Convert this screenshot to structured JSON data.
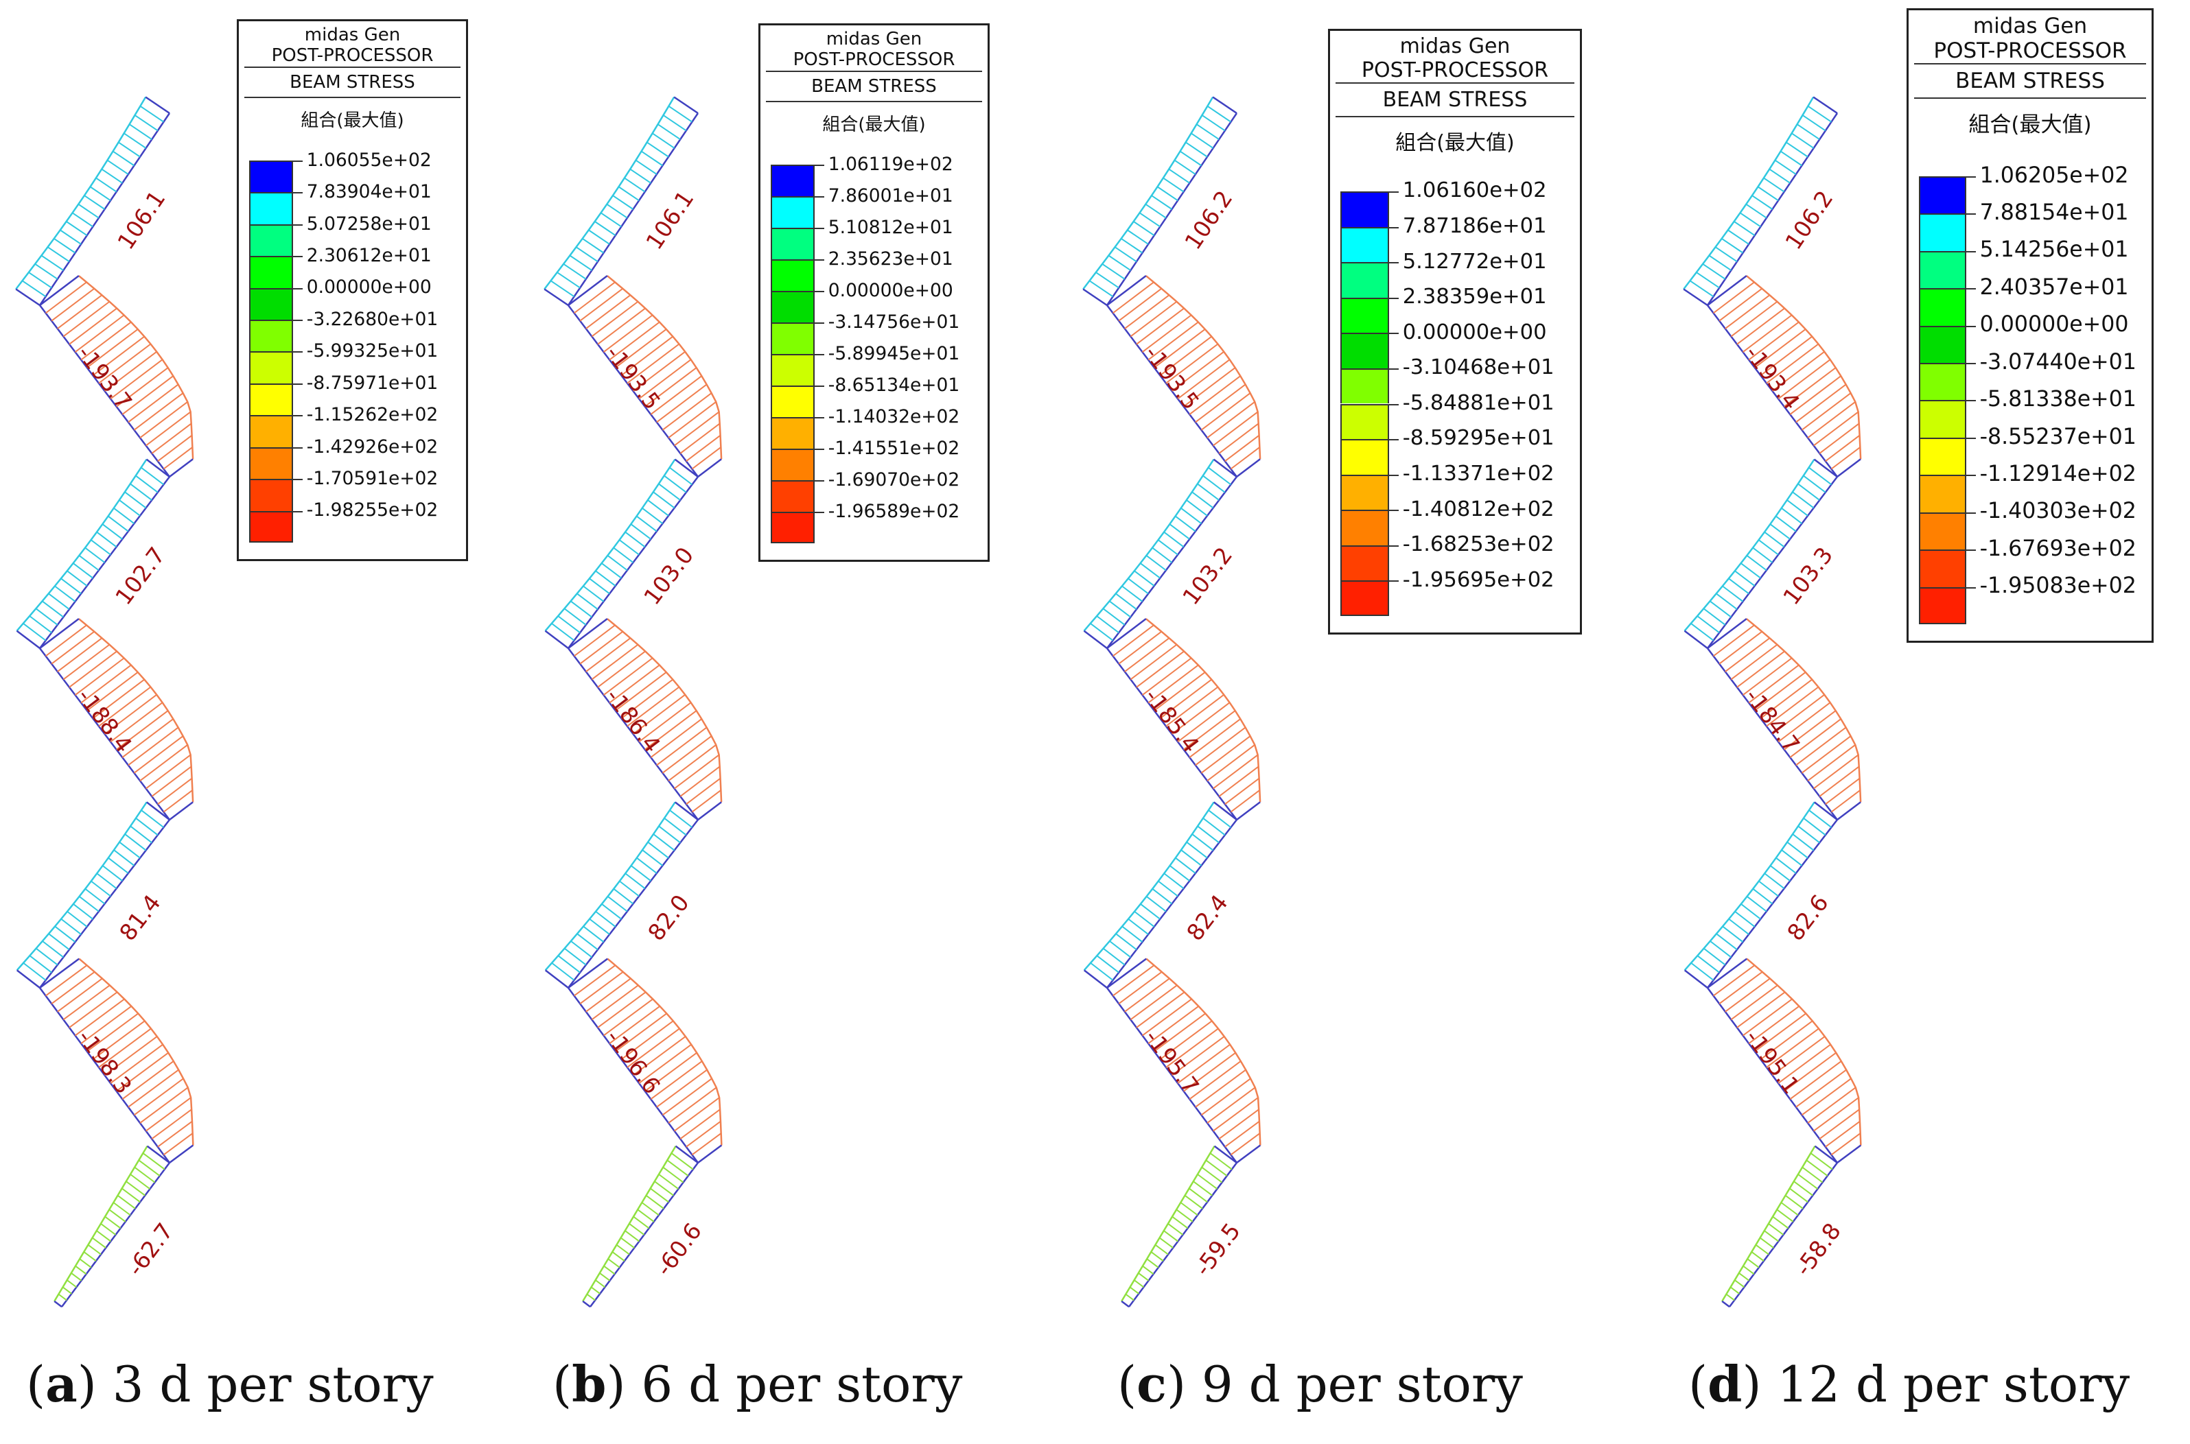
{
  "panels": [
    {
      "id": "a",
      "caption_letter": "a",
      "caption_text": "3 d per story",
      "values": [
        "106.1",
        "-193.7",
        "102.7",
        "-188.4",
        "81.4",
        "-198.3",
        "-62.7"
      ],
      "legend": {
        "title1": "midas Gen",
        "title2": "POST-PROCESSOR",
        "title3": "BEAM STRESS",
        "subtitle": "組合(最大值)",
        "levels": [
          "1.06055e+02",
          "7.83904e+01",
          "5.07258e+01",
          "2.30612e+01",
          "0.00000e+00",
          "-3.22680e+01",
          "-5.99325e+01",
          "-8.75971e+01",
          "-1.15262e+02",
          "-1.42926e+02",
          "-1.70591e+02",
          "-1.98255e+02"
        ]
      }
    },
    {
      "id": "b",
      "caption_letter": "b",
      "caption_text": "6 d per story",
      "values": [
        "106.1",
        "-193.5",
        "103.0",
        "-186.4",
        "82.0",
        "-196.6",
        "-60.6"
      ],
      "legend": {
        "title1": "midas Gen",
        "title2": "POST-PROCESSOR",
        "title3": "BEAM STRESS",
        "subtitle": "組合(最大值)",
        "levels": [
          "1.06119e+02",
          "7.86001e+01",
          "5.10812e+01",
          "2.35623e+01",
          "0.00000e+00",
          "-3.14756e+01",
          "-5.89945e+01",
          "-8.65134e+01",
          "-1.14032e+02",
          "-1.41551e+02",
          "-1.69070e+02",
          "-1.96589e+02"
        ]
      }
    },
    {
      "id": "c",
      "caption_letter": "c",
      "caption_text": "9 d per story",
      "values": [
        "106.2",
        "-193.5",
        "103.2",
        "-185.4",
        "82.4",
        "-195.7",
        "-59.5"
      ],
      "legend": {
        "title1": "midas Gen",
        "title2": "POST-PROCESSOR",
        "title3": "BEAM STRESS",
        "subtitle": "組合(最大值)",
        "levels": [
          "1.06160e+02",
          "7.87186e+01",
          "5.12772e+01",
          "2.38359e+01",
          "0.00000e+00",
          "-3.10468e+01",
          "-5.84881e+01",
          "-8.59295e+01",
          "-1.13371e+02",
          "-1.40812e+02",
          "-1.68253e+02",
          "-1.95695e+02"
        ]
      }
    },
    {
      "id": "d",
      "caption_letter": "d",
      "caption_text": "12 d per story",
      "values": [
        "106.2",
        "-193.4",
        "103.3",
        "-184.7",
        "82.6",
        "-195.1",
        "-58.8"
      ],
      "legend": {
        "title1": "midas Gen",
        "title2": "POST-PROCESSOR",
        "title3": "BEAM STRESS",
        "subtitle": "組合(最大值)",
        "levels": [
          "1.06205e+02",
          "7.88154e+01",
          "5.14256e+01",
          "2.40357e+01",
          "0.00000e+00",
          "-3.07440e+01",
          "-5.81338e+01",
          "-8.55237e+01",
          "-1.12914e+02",
          "-1.40303e+02",
          "-1.67693e+02",
          "-1.95083e+02"
        ]
      }
    }
  ],
  "colors": {
    "scale": [
      "#0000ff",
      "#00ffff",
      "#00ff80",
      "#00ff00",
      "#00dd00",
      "#80ff00",
      "#ccff00",
      "#ffff00",
      "#ffb000",
      "#ff8000",
      "#ff4000",
      "#ff2000"
    ],
    "label": "#a01010",
    "axis": "#4040c0",
    "tension": "#30c8e0",
    "compression": "#f08050",
    "tail": "#90e040"
  }
}
